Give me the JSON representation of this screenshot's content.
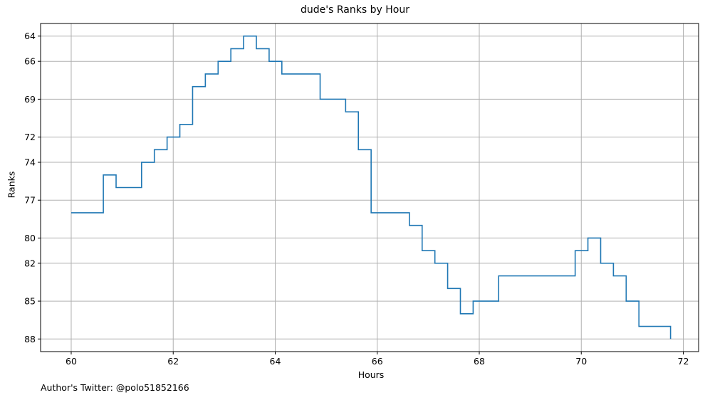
{
  "chart_data": {
    "type": "line",
    "step": "post",
    "title": "dude's Ranks by Hour",
    "xlabel": "Hours",
    "ylabel": "Ranks",
    "footnote": "Author's Twitter: @polo51852166",
    "xlim": [
      59.4,
      72.3
    ],
    "ylim": [
      89.0,
      63.0
    ],
    "y_inverted": true,
    "grid": true,
    "x_ticks": [
      60,
      62,
      64,
      66,
      68,
      70,
      72
    ],
    "y_ticks": [
      64,
      66,
      69,
      72,
      74,
      77,
      80,
      82,
      85,
      88
    ],
    "color": "#1f77b4",
    "series": [
      {
        "x": [
          60.0,
          60.63,
          60.88,
          61.38,
          61.63,
          61.88,
          62.13,
          62.38,
          62.63,
          62.88,
          63.13,
          63.38,
          63.63,
          63.88,
          64.13,
          64.88,
          65.38,
          65.63,
          65.88,
          66.63,
          66.88,
          67.13,
          67.38,
          67.63,
          67.88,
          68.38,
          69.88,
          70.13,
          70.38,
          70.63,
          70.88,
          71.13,
          71.75
        ],
        "values": [
          78,
          75,
          76,
          74,
          73,
          72,
          71,
          68,
          67,
          66,
          65,
          64,
          65,
          66,
          67,
          69,
          70,
          73,
          78,
          79,
          81,
          82,
          84,
          86,
          85,
          83,
          81,
          80,
          82,
          83,
          85,
          87,
          88
        ]
      }
    ]
  }
}
